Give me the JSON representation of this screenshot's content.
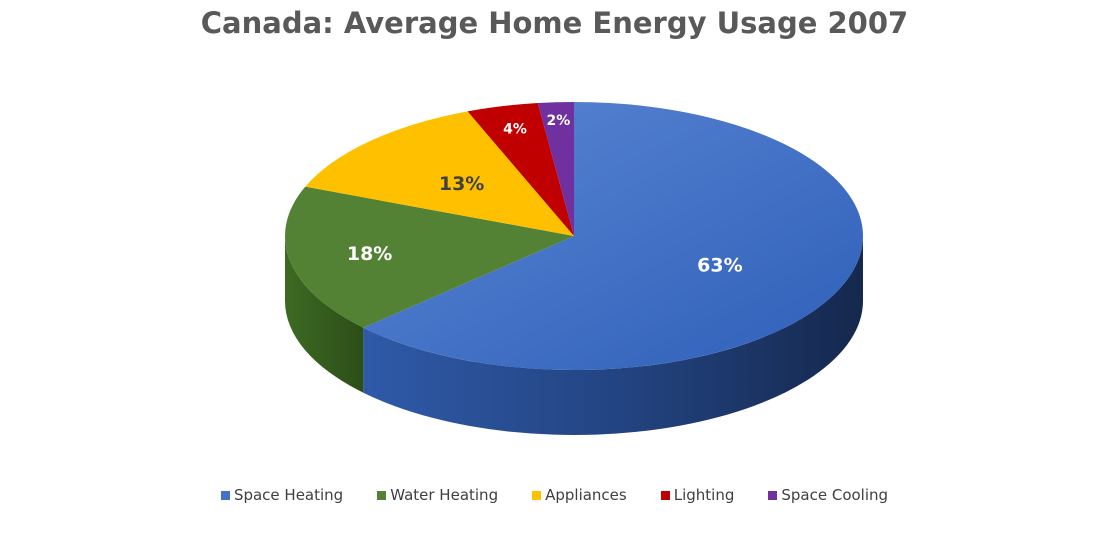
{
  "chart_data": {
    "type": "pie",
    "title": "Canada: Average Home Energy Usage 2007",
    "legend_position": "bottom",
    "categories": [
      "Space Heating",
      "Water Heating",
      "Appliances",
      "Lighting",
      "Space Cooling"
    ],
    "values": [
      63,
      18,
      13,
      4,
      2
    ],
    "labels": [
      "63%",
      "18%",
      "13%",
      "4%",
      "2%"
    ],
    "colors": [
      "#4472C4",
      "#548235",
      "#FFC000",
      "#C00000",
      "#7030A0"
    ],
    "style": "3d"
  }
}
